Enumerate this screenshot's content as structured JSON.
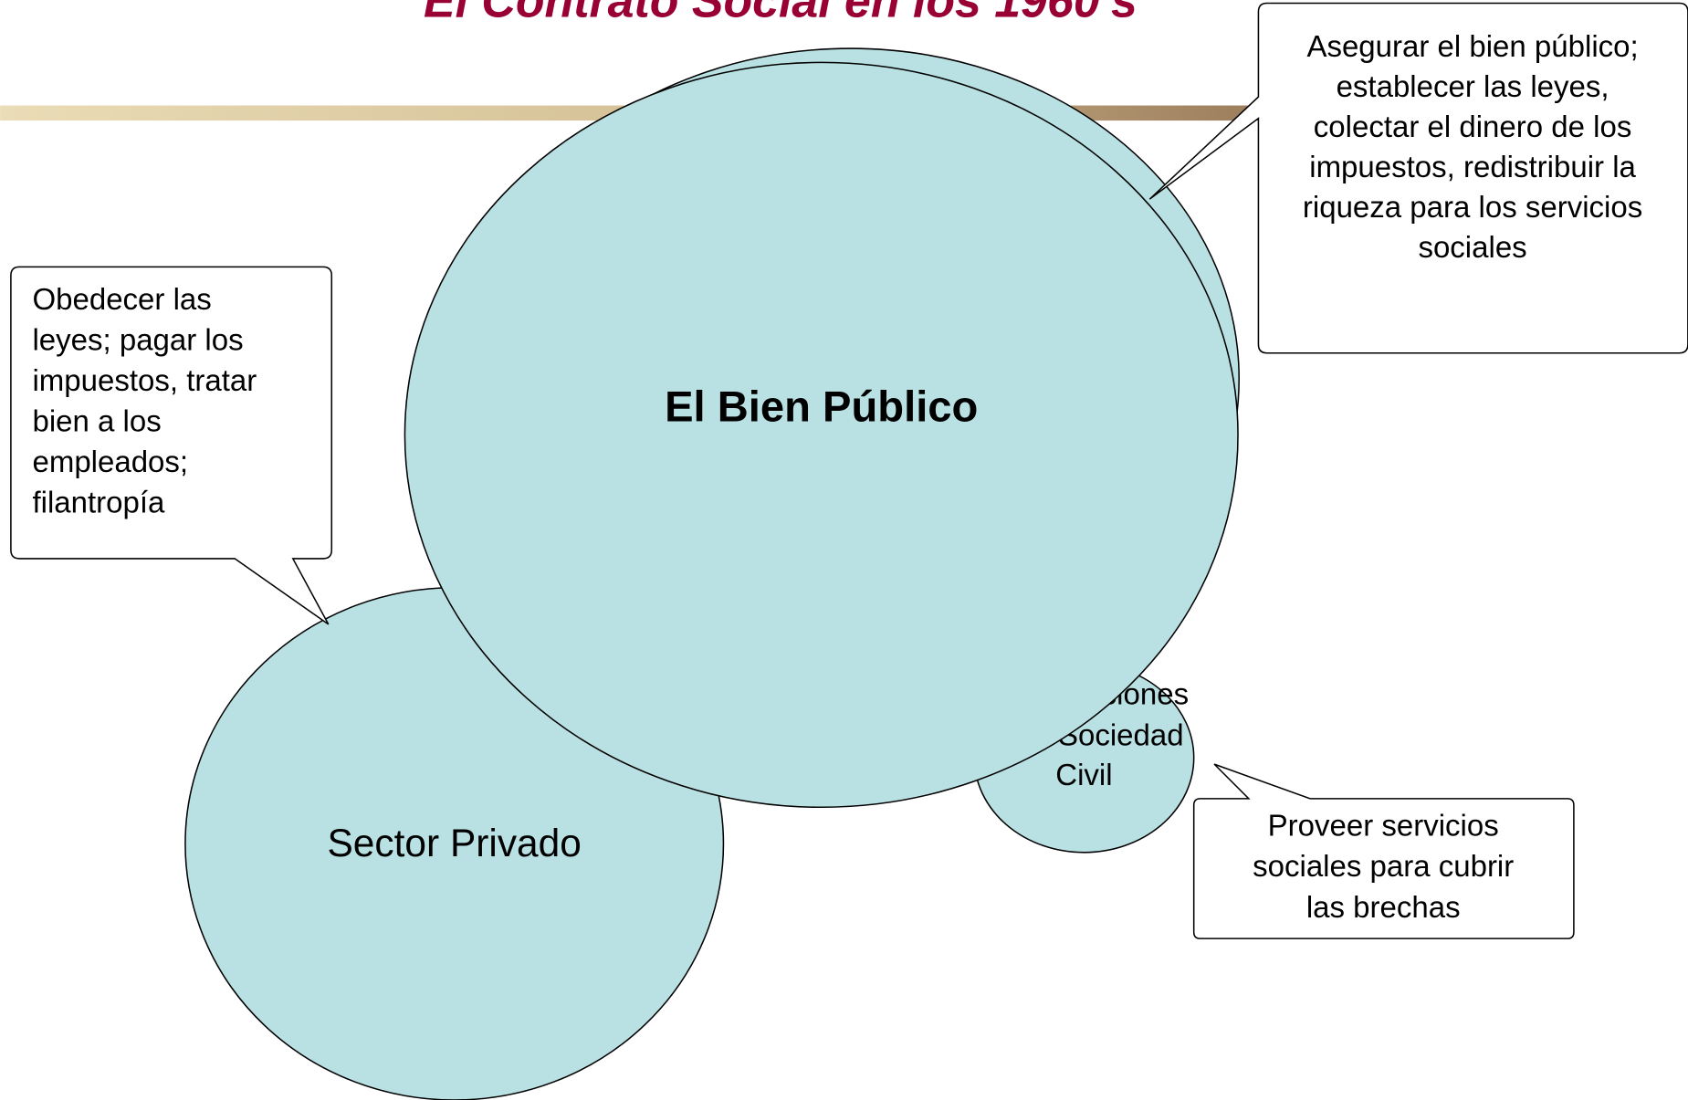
{
  "title": "El Contrato Social en los 1960's",
  "circles": [
    {
      "label": [
        "Sector Privado"
      ]
    },
    {
      "label": [
        "Organizaciones",
        "de la Sociedad",
        "Civil"
      ]
    },
    {
      "label": [
        "El Bien Público"
      ]
    }
  ],
  "callouts": [
    {
      "lines": [
        "Obedecer las",
        "leyes; pagar los",
        "impuestos, tratar",
        "bien a los",
        "empleados;",
        "filantropía"
      ]
    },
    {
      "lines": [
        "Asegurar el bien público;",
        "establecer  las leyes,",
        "colectar el dinero de los",
        "impuestos, redistribuir la",
        "riqueza para los servicios",
        "sociales"
      ]
    },
    {
      "lines": [
        "Proveer servicios",
        "sociales para cubrir",
        "las brechas"
      ]
    }
  ]
}
